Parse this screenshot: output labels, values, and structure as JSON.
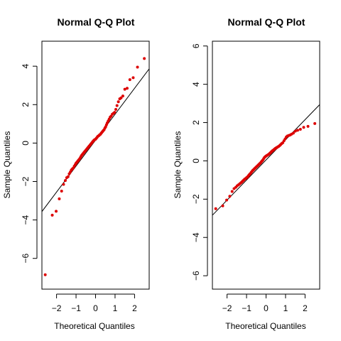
{
  "chart_data": [
    {
      "type": "scatter",
      "title": "Normal Q-Q Plot",
      "xlabel": "Theoretical Quantiles",
      "ylabel": "Sample Quantiles",
      "xlim": [
        -2.75,
        2.75
      ],
      "ylim": [
        -7.6,
        5.3
      ],
      "xticks": [
        -2,
        -1,
        0,
        1,
        2
      ],
      "yticks": [
        -6,
        -4,
        -2,
        0,
        2,
        4
      ],
      "point_color": "#dd0000",
      "reference_line": {
        "slope": 1.35,
        "intercept": 0.15
      },
      "points": [
        [
          -2.58,
          -6.85
        ],
        [
          -2.22,
          -3.75
        ],
        [
          -2.02,
          -3.55
        ],
        [
          -1.86,
          -2.9
        ],
        [
          -1.74,
          -2.5
        ],
        [
          -1.64,
          -2.15
        ],
        [
          -1.55,
          -1.95
        ],
        [
          -1.48,
          -1.8
        ],
        [
          -1.41,
          -1.75
        ],
        [
          -1.35,
          -1.6
        ],
        [
          -1.29,
          -1.5
        ],
        [
          -1.24,
          -1.4
        ],
        [
          -1.19,
          -1.35
        ],
        [
          -1.14,
          -1.3
        ],
        [
          -1.09,
          -1.2
        ],
        [
          -1.04,
          -1.12
        ],
        [
          -1.0,
          -1.05
        ],
        [
          -0.96,
          -1.0
        ],
        [
          -0.92,
          -0.95
        ],
        [
          -0.88,
          -0.9
        ],
        [
          -0.84,
          -0.85
        ],
        [
          -0.8,
          -0.8
        ],
        [
          -0.76,
          -0.72
        ],
        [
          -0.72,
          -0.65
        ],
        [
          -0.68,
          -0.6
        ],
        [
          -0.64,
          -0.55
        ],
        [
          -0.6,
          -0.5
        ],
        [
          -0.56,
          -0.45
        ],
        [
          -0.52,
          -0.4
        ],
        [
          -0.48,
          -0.35
        ],
        [
          -0.44,
          -0.3
        ],
        [
          -0.4,
          -0.25
        ],
        [
          -0.36,
          -0.2
        ],
        [
          -0.32,
          -0.15
        ],
        [
          -0.28,
          -0.1
        ],
        [
          -0.24,
          -0.05
        ],
        [
          -0.2,
          0.0
        ],
        [
          -0.16,
          0.05
        ],
        [
          -0.12,
          0.1
        ],
        [
          -0.08,
          0.15
        ],
        [
          -0.04,
          0.18
        ],
        [
          0.0,
          0.2
        ],
        [
          0.04,
          0.25
        ],
        [
          0.08,
          0.3
        ],
        [
          0.12,
          0.35
        ],
        [
          0.16,
          0.38
        ],
        [
          0.2,
          0.42
        ],
        [
          0.24,
          0.45
        ],
        [
          0.28,
          0.5
        ],
        [
          0.32,
          0.55
        ],
        [
          0.36,
          0.6
        ],
        [
          0.4,
          0.65
        ],
        [
          0.44,
          0.7
        ],
        [
          0.48,
          0.78
        ],
        [
          0.52,
          0.85
        ],
        [
          0.56,
          0.95
        ],
        [
          0.6,
          1.05
        ],
        [
          0.65,
          1.15
        ],
        [
          0.7,
          1.25
        ],
        [
          0.75,
          1.35
        ],
        [
          0.8,
          1.4
        ],
        [
          0.86,
          1.5
        ],
        [
          0.92,
          1.55
        ],
        [
          0.98,
          1.6
        ],
        [
          1.04,
          1.75
        ],
        [
          1.1,
          1.95
        ],
        [
          1.17,
          2.15
        ],
        [
          1.24,
          2.3
        ],
        [
          1.31,
          2.35
        ],
        [
          1.4,
          2.45
        ],
        [
          1.5,
          2.8
        ],
        [
          1.62,
          2.85
        ],
        [
          1.76,
          3.3
        ],
        [
          1.93,
          3.4
        ],
        [
          2.15,
          3.95
        ],
        [
          2.5,
          4.4
        ]
      ]
    },
    {
      "type": "scatter",
      "title": "Normal Q-Q Plot",
      "xlabel": "Theoretical Quantiles",
      "ylabel": "Sample Quantiles",
      "xlim": [
        -2.75,
        2.75
      ],
      "ylim": [
        -6.7,
        6.25
      ],
      "xticks": [
        -2,
        -1,
        0,
        1,
        2
      ],
      "yticks": [
        -6,
        -4,
        -2,
        0,
        2,
        4,
        6
      ],
      "point_color": "#dd0000",
      "reference_line": {
        "slope": 1.05,
        "intercept": 0.05
      },
      "points": [
        [
          -2.58,
          -2.5
        ],
        [
          -2.22,
          -2.35
        ],
        [
          -2.02,
          -2.05
        ],
        [
          -1.86,
          -1.85
        ],
        [
          -1.74,
          -1.6
        ],
        [
          -1.64,
          -1.45
        ],
        [
          -1.55,
          -1.38
        ],
        [
          -1.48,
          -1.3
        ],
        [
          -1.41,
          -1.25
        ],
        [
          -1.35,
          -1.2
        ],
        [
          -1.29,
          -1.15
        ],
        [
          -1.24,
          -1.1
        ],
        [
          -1.19,
          -1.05
        ],
        [
          -1.14,
          -1.0
        ],
        [
          -1.09,
          -0.95
        ],
        [
          -1.04,
          -0.92
        ],
        [
          -1.0,
          -0.88
        ],
        [
          -0.96,
          -0.85
        ],
        [
          -0.92,
          -0.8
        ],
        [
          -0.88,
          -0.75
        ],
        [
          -0.84,
          -0.7
        ],
        [
          -0.8,
          -0.66
        ],
        [
          -0.76,
          -0.6
        ],
        [
          -0.72,
          -0.55
        ],
        [
          -0.68,
          -0.5
        ],
        [
          -0.64,
          -0.46
        ],
        [
          -0.6,
          -0.42
        ],
        [
          -0.56,
          -0.38
        ],
        [
          -0.52,
          -0.34
        ],
        [
          -0.48,
          -0.3
        ],
        [
          -0.44,
          -0.26
        ],
        [
          -0.4,
          -0.22
        ],
        [
          -0.36,
          -0.18
        ],
        [
          -0.32,
          -0.14
        ],
        [
          -0.28,
          -0.1
        ],
        [
          -0.24,
          -0.05
        ],
        [
          -0.2,
          0.0
        ],
        [
          -0.16,
          0.05
        ],
        [
          -0.12,
          0.12
        ],
        [
          -0.08,
          0.18
        ],
        [
          -0.04,
          0.22
        ],
        [
          0.0,
          0.25
        ],
        [
          0.04,
          0.28
        ],
        [
          0.08,
          0.3
        ],
        [
          0.12,
          0.33
        ],
        [
          0.16,
          0.36
        ],
        [
          0.2,
          0.4
        ],
        [
          0.24,
          0.44
        ],
        [
          0.28,
          0.48
        ],
        [
          0.32,
          0.52
        ],
        [
          0.36,
          0.55
        ],
        [
          0.4,
          0.58
        ],
        [
          0.44,
          0.62
        ],
        [
          0.48,
          0.65
        ],
        [
          0.52,
          0.68
        ],
        [
          0.56,
          0.7
        ],
        [
          0.6,
          0.73
        ],
        [
          0.65,
          0.76
        ],
        [
          0.7,
          0.8
        ],
        [
          0.75,
          0.85
        ],
        [
          0.8,
          0.9
        ],
        [
          0.86,
          0.95
        ],
        [
          0.92,
          1.05
        ],
        [
          0.98,
          1.15
        ],
        [
          1.04,
          1.25
        ],
        [
          1.1,
          1.3
        ],
        [
          1.17,
          1.33
        ],
        [
          1.24,
          1.35
        ],
        [
          1.31,
          1.4
        ],
        [
          1.4,
          1.45
        ],
        [
          1.5,
          1.55
        ],
        [
          1.62,
          1.6
        ],
        [
          1.76,
          1.65
        ],
        [
          1.93,
          1.75
        ],
        [
          2.15,
          1.8
        ],
        [
          2.5,
          1.95
        ]
      ]
    }
  ]
}
